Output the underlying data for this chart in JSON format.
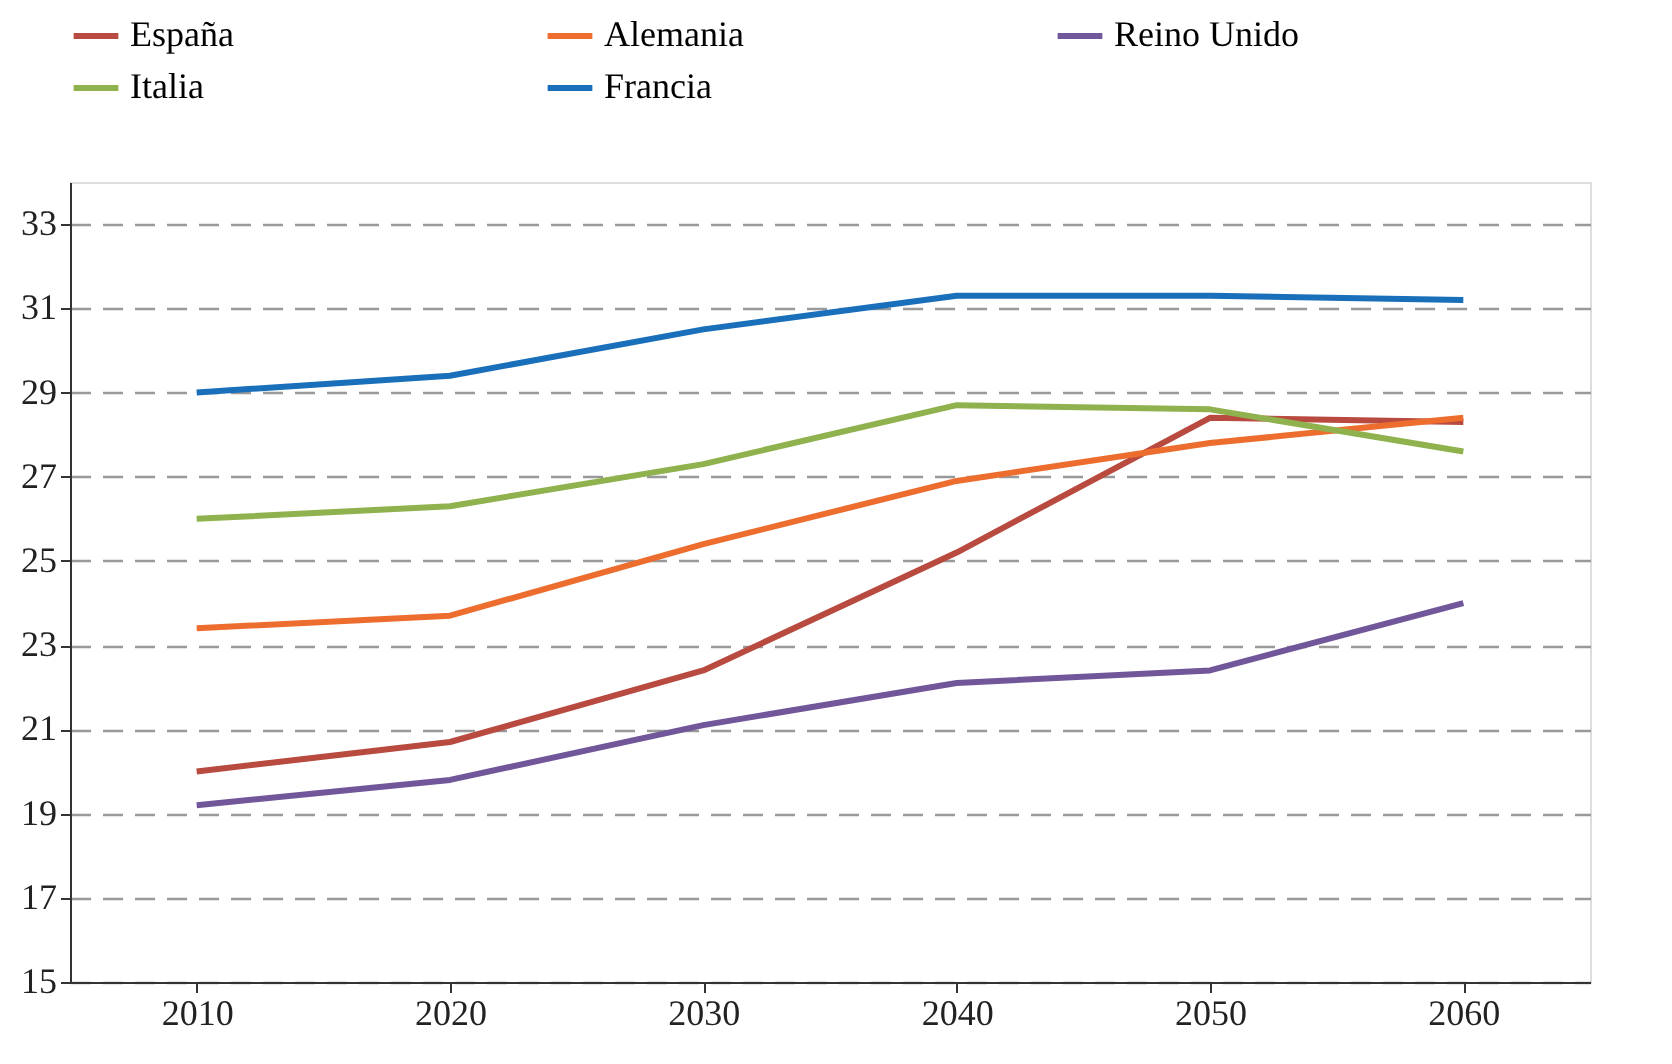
{
  "chart_data": {
    "type": "line",
    "categories": [
      "2010",
      "2020",
      "2030",
      "2040",
      "2050",
      "2060"
    ],
    "series": [
      {
        "name": "España",
        "color": "#b84a3f",
        "values": [
          20.0,
          20.7,
          22.4,
          25.2,
          28.4,
          28.3
        ]
      },
      {
        "name": "Alemania",
        "color": "#ed6d2f",
        "values": [
          23.4,
          23.7,
          25.4,
          26.9,
          27.8,
          28.4
        ]
      },
      {
        "name": "Reino Unido",
        "color": "#71579a",
        "values": [
          19.2,
          19.8,
          21.1,
          22.1,
          22.4,
          24.0
        ]
      },
      {
        "name": "Italia",
        "color": "#8fb24e",
        "values": [
          26.0,
          26.3,
          27.3,
          28.7,
          28.6,
          27.6
        ]
      },
      {
        "name": "Francia",
        "color": "#1a6fba",
        "values": [
          29.0,
          29.4,
          30.5,
          31.3,
          31.3,
          31.2
        ]
      }
    ],
    "ylim": [
      15,
      34
    ],
    "yticks": [
      15,
      17,
      19,
      21,
      23,
      25,
      27,
      29,
      31,
      33
    ],
    "grid": "y",
    "legend": "top",
    "marker": "none",
    "line_style": "solid"
  }
}
